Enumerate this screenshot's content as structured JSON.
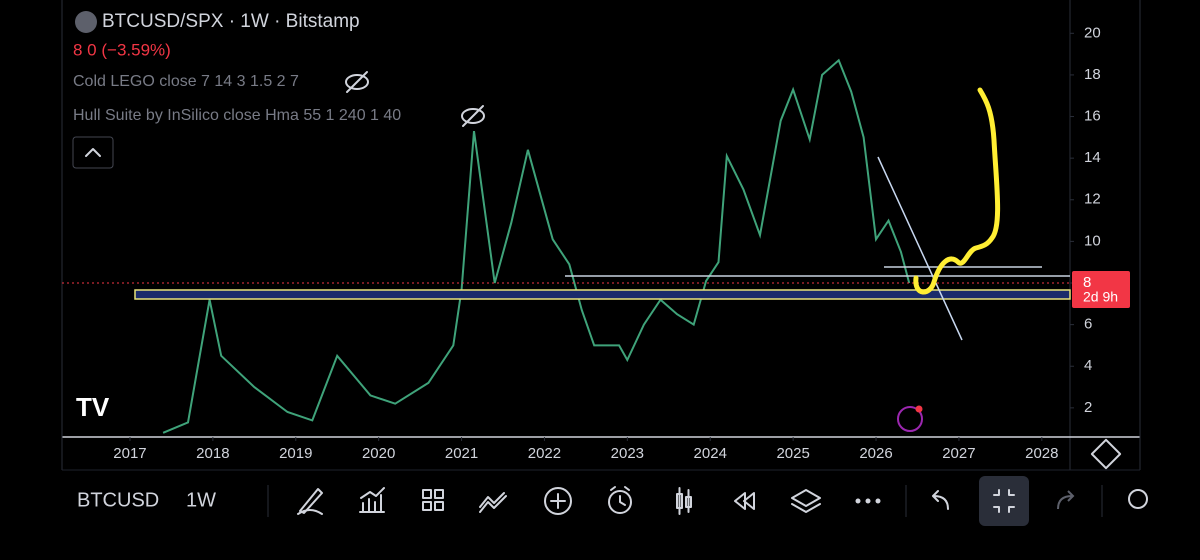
{
  "header": {
    "symbol": "BTCUSD/SPX · 1W · Bitstamp",
    "price_change": "8 0 (−3.59%)",
    "indicator_1": "Cold LEGO close 7 14 3 1.5 2 7",
    "indicator_2": "Hull Suite by InSilico close Hma 55 1 240 1 40"
  },
  "chart_data": {
    "type": "line",
    "color": "#3fa37a",
    "x": [
      2017.4,
      2017.7,
      2017.96,
      2018.1,
      2018.5,
      2018.9,
      2019.2,
      2019.5,
      2019.9,
      2020.2,
      2020.6,
      2020.9,
      2021.0,
      2021.15,
      2021.4,
      2021.6,
      2021.8,
      2022.1,
      2022.3,
      2022.45,
      2022.6,
      2022.9,
      2023.0,
      2023.2,
      2023.4,
      2023.6,
      2023.8,
      2023.95,
      2024.1,
      2024.2,
      2024.4,
      2024.6,
      2024.85,
      2025.0,
      2025.2,
      2025.35,
      2025.55,
      2025.7,
      2025.85,
      2026.0,
      2026.15,
      2026.3,
      2026.4
    ],
    "values": [
      0.8,
      1.3,
      7.2,
      4.5,
      3.0,
      1.8,
      1.4,
      4.5,
      2.6,
      2.2,
      3.2,
      5.0,
      7.7,
      15.3,
      8.0,
      10.9,
      14.4,
      10.1,
      8.9,
      6.7,
      5.0,
      5.0,
      4.3,
      6.0,
      7.2,
      6.5,
      6.0,
      8.1,
      9.0,
      14.1,
      12.5,
      10.3,
      15.8,
      17.3,
      14.9,
      18.0,
      18.7,
      17.2,
      15.0,
      10.1,
      11.0,
      9.5,
      8.0
    ],
    "xlim": [
      2016.18,
      2028.34
    ],
    "xticks": [
      2017,
      2018,
      2019,
      2020,
      2021,
      2022,
      2023,
      2024,
      2025,
      2026,
      2027,
      2028
    ],
    "ylim": [
      0.6,
      21.6
    ],
    "yticks": [
      2,
      4,
      6,
      8,
      10,
      12,
      14,
      16,
      18,
      20
    ],
    "last_price": 8,
    "countdown": "2d 9h",
    "last_price_color": "#f23645"
  },
  "toolbar": {
    "symbol": "BTCUSD",
    "interval": "1W"
  }
}
